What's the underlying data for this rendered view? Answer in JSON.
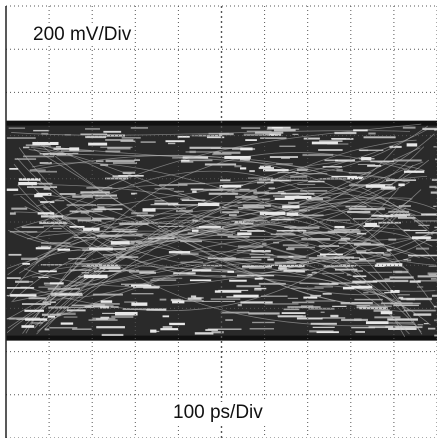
{
  "chart_data": {
    "type": "eye-diagram",
    "vertical_scale": "200 mV/Div",
    "horizontal_scale": "100 ps/Div",
    "grid": true,
    "grid_divisions": {
      "horizontal": 10,
      "vertical": 10
    },
    "x_range_ps": [
      0,
      1000
    ],
    "y_range_mV": [
      -1000,
      1000
    ],
    "signal": {
      "high_level_mV": 460,
      "low_level_mV": -540,
      "eye_closed": true,
      "trace_color": "#111111"
    }
  },
  "colors": {
    "background": "#ffffff",
    "grid": "#555555",
    "trace": "#111111",
    "noise_light": "#e8e8e8"
  }
}
